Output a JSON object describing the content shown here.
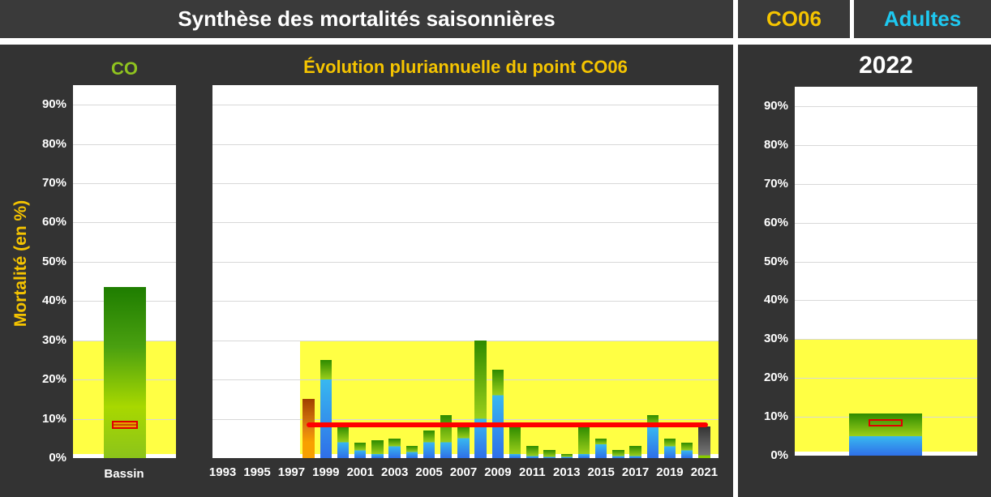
{
  "header": {
    "title": "Synthèse des mortalités saisonnières",
    "point": "CO06",
    "category": "Adultes"
  },
  "colors": {
    "accent_yellow": "#f5c400",
    "accent_blue": "#1ec8f0",
    "accent_green": "#8fc31f",
    "zone_fill": "#ffff44",
    "reference_line": "#ff0000",
    "bar_blue": "#3388ee",
    "bar_green": "#2e8b00"
  },
  "chart_data": [
    {
      "type": "bar",
      "title": "CO",
      "ylabel": "Mortalité (en %)",
      "categories": [
        "Bassin"
      ],
      "values": [
        43.5
      ],
      "reference_marker": 8.5,
      "highlight_band": [
        1,
        30
      ],
      "ylim": [
        0,
        95
      ],
      "yticks": [
        "0%",
        "10%",
        "20%",
        "30%",
        "40%",
        "50%",
        "60%",
        "70%",
        "80%",
        "90%"
      ]
    },
    {
      "type": "bar",
      "title": "Évolution pluriannuelle du point CO06",
      "categories": [
        "1993",
        "1994",
        "1995",
        "1996",
        "1997",
        "1998",
        "1999",
        "2000",
        "2001",
        "2002",
        "2003",
        "2004",
        "2005",
        "2006",
        "2007",
        "2008",
        "2009",
        "2010",
        "2011",
        "2012",
        "2013",
        "2014",
        "2015",
        "2016",
        "2017",
        "2018",
        "2019",
        "2020",
        "2021"
      ],
      "xtick_labels": [
        "1993",
        "1995",
        "1997",
        "1999",
        "2001",
        "2003",
        "2005",
        "2007",
        "2009",
        "2011",
        "2013",
        "2015",
        "2017",
        "2019",
        "2021"
      ],
      "values": [
        0,
        0,
        0,
        0,
        0,
        15,
        25,
        8,
        4,
        4.5,
        5,
        3,
        7,
        11,
        8,
        30,
        22.5,
        8,
        3,
        2,
        1,
        8,
        5,
        2,
        3,
        11,
        5,
        4,
        8
      ],
      "blue_part": [
        0,
        0,
        0,
        0,
        0,
        4,
        20,
        4,
        2,
        1,
        3,
        1.5,
        4,
        4,
        5,
        10,
        16,
        1,
        0.5,
        0.3,
        0.3,
        1,
        3.5,
        0.5,
        0.5,
        8,
        3,
        2,
        0.5
      ],
      "reference_line": 8.5,
      "highlight_band": [
        1,
        30
      ],
      "ylim": [
        0,
        95
      ]
    },
    {
      "type": "bar",
      "title": "2022",
      "categories": [
        ""
      ],
      "values": [
        10.8
      ],
      "blue_part": [
        5
      ],
      "reference_marker": 8.5,
      "highlight_band": [
        1,
        30
      ],
      "ylim": [
        0,
        95
      ],
      "yticks": [
        "0%",
        "10%",
        "20%",
        "30%",
        "40%",
        "50%",
        "60%",
        "70%",
        "80%",
        "90%"
      ]
    }
  ]
}
